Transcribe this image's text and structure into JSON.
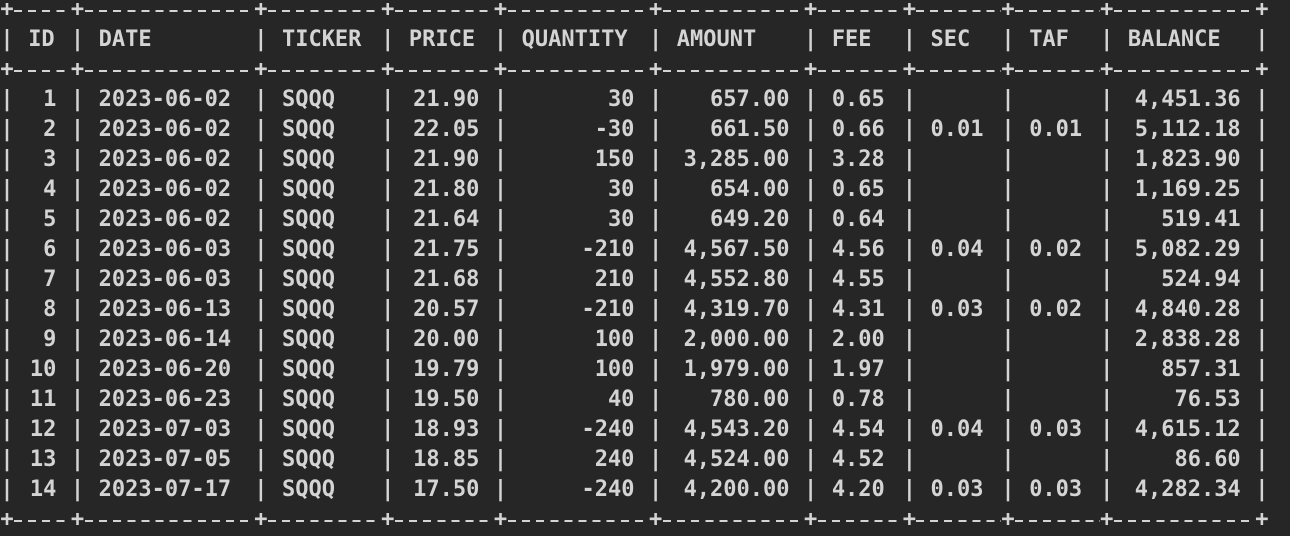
{
  "table": {
    "headers": [
      "ID",
      "DATE",
      "TICKER",
      "PRICE",
      "QUANTITY",
      "AMOUNT",
      "FEE",
      "SEC",
      "TAF",
      "BALANCE"
    ],
    "rows": [
      [
        "1",
        "2023-06-02",
        "SQQQ",
        "21.90",
        "30",
        "657.00",
        "0.65",
        null,
        null,
        "4,451.36"
      ],
      [
        "2",
        "2023-06-02",
        "SQQQ",
        "22.05",
        "-30",
        "661.50",
        "0.66",
        "0.01",
        "0.01",
        "5,112.18"
      ],
      [
        "3",
        "2023-06-02",
        "SQQQ",
        "21.90",
        "150",
        "3,285.00",
        "3.28",
        null,
        null,
        "1,823.90"
      ],
      [
        "4",
        "2023-06-02",
        "SQQQ",
        "21.80",
        "30",
        "654.00",
        "0.65",
        null,
        null,
        "1,169.25"
      ],
      [
        "5",
        "2023-06-02",
        "SQQQ",
        "21.64",
        "30",
        "649.20",
        "0.64",
        null,
        null,
        "519.41"
      ],
      [
        "6",
        "2023-06-03",
        "SQQQ",
        "21.75",
        "-210",
        "4,567.50",
        "4.56",
        "0.04",
        "0.02",
        "5,082.29"
      ],
      [
        "7",
        "2023-06-03",
        "SQQQ",
        "21.68",
        "210",
        "4,552.80",
        "4.55",
        null,
        null,
        "524.94"
      ],
      [
        "8",
        "2023-06-13",
        "SQQQ",
        "20.57",
        "-210",
        "4,319.70",
        "4.31",
        "0.03",
        "0.02",
        "4,840.28"
      ],
      [
        "9",
        "2023-06-14",
        "SQQQ",
        "20.00",
        "100",
        "2,000.00",
        "2.00",
        null,
        null,
        "2,838.28"
      ],
      [
        "10",
        "2023-06-20",
        "SQQQ",
        "19.79",
        "100",
        "1,979.00",
        "1.97",
        null,
        null,
        "857.31"
      ],
      [
        "11",
        "2023-06-23",
        "SQQQ",
        "19.50",
        "40",
        "780.00",
        "0.78",
        null,
        null,
        "76.53"
      ],
      [
        "12",
        "2023-07-03",
        "SQQQ",
        "18.93",
        "-240",
        "4,543.20",
        "4.54",
        "0.04",
        "0.03",
        "4,615.12"
      ],
      [
        "13",
        "2023-07-05",
        "SQQQ",
        "18.85",
        "240",
        "4,524.00",
        "4.52",
        null,
        null,
        "86.60"
      ],
      [
        "14",
        "2023-07-17",
        "SQQQ",
        "17.50",
        "-240",
        "4,200.00",
        "4.20",
        "0.03",
        "0.03",
        "4,282.34"
      ]
    ]
  }
}
